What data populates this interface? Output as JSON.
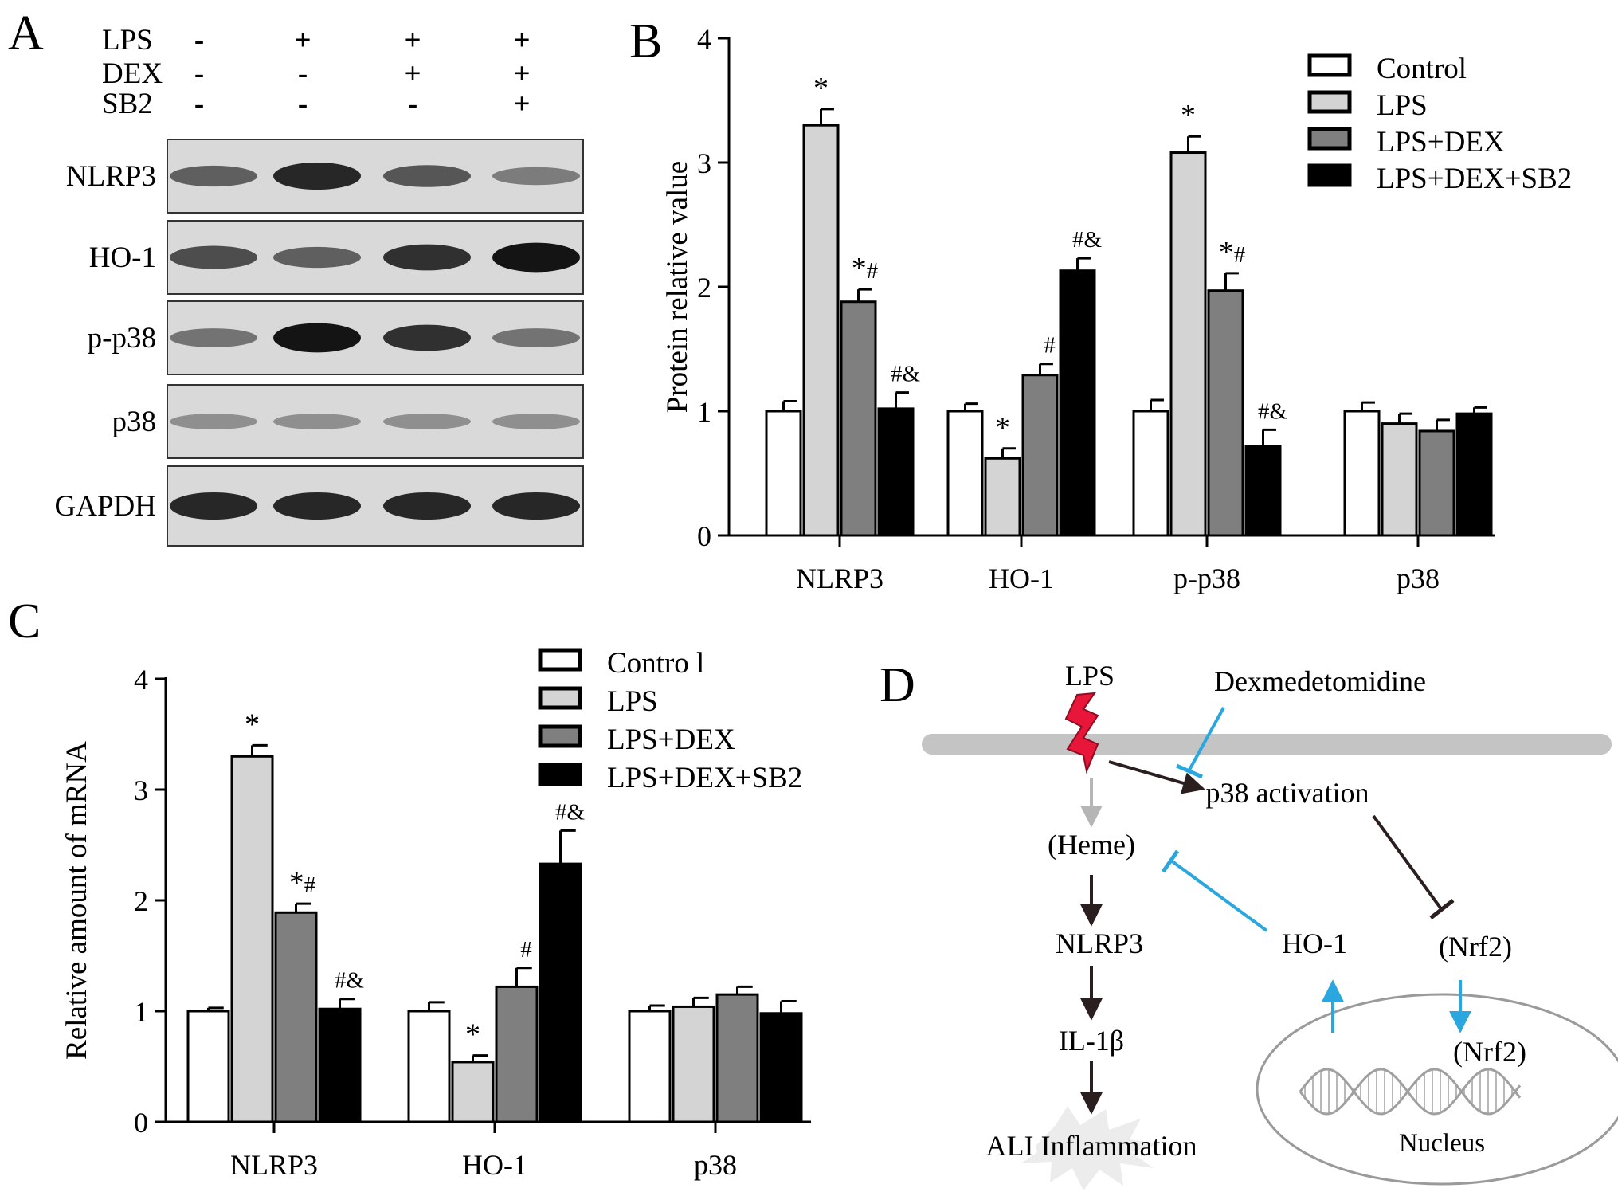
{
  "panels": {
    "A": "A",
    "B": "B",
    "C": "C",
    "D": "D"
  },
  "colors": {
    "control": "#ffffff",
    "lps": "#d4d4d4",
    "lps_dex": "#7f7f7f",
    "lps_dex_sb2": "#000000",
    "inhibit_blue": "#29a7de",
    "lightning": "#e8173a"
  },
  "blot": {
    "conditions": [
      {
        "name": "LPS",
        "signs": [
          "-",
          "+",
          "+",
          "+"
        ]
      },
      {
        "name": "DEX",
        "signs": [
          "-",
          "-",
          "+",
          "+"
        ]
      },
      {
        "name": "SB2",
        "signs": [
          "-",
          "-",
          "-",
          "+"
        ]
      }
    ],
    "bands": [
      {
        "label": "NLRP3",
        "intensity": [
          0.55,
          0.85,
          0.6,
          0.4
        ]
      },
      {
        "label": "HO-1",
        "intensity": [
          0.65,
          0.55,
          0.8,
          0.95
        ]
      },
      {
        "label": "p-p38",
        "intensity": [
          0.45,
          0.95,
          0.8,
          0.45
        ]
      },
      {
        "label": "p38",
        "intensity": [
          0.3,
          0.3,
          0.3,
          0.3
        ]
      },
      {
        "label": "GAPDH",
        "intensity": [
          0.85,
          0.85,
          0.85,
          0.85
        ]
      }
    ]
  },
  "chart_data": [
    {
      "type": "bar",
      "panel": "B",
      "ylabel": "Protein relative value",
      "ylim": [
        0,
        4
      ],
      "yticks": [
        "0",
        "1",
        "2",
        "3",
        "4"
      ],
      "categories": [
        "NLRP3",
        "HO-1",
        "p-p38",
        "p38"
      ],
      "legend": {
        "placement": "top-right",
        "entries": [
          "Control",
          "LPS",
          "LPS+DEX",
          "LPS+DEX+SB2"
        ]
      },
      "series": [
        {
          "name": "Control",
          "values": [
            1.0,
            1.0,
            1.0,
            1.0
          ],
          "errors": [
            0.08,
            0.06,
            0.09,
            0.07
          ],
          "labels": [
            "",
            "",
            "",
            ""
          ]
        },
        {
          "name": "LPS",
          "values": [
            3.3,
            0.62,
            3.08,
            0.9
          ],
          "errors": [
            0.13,
            0.08,
            0.13,
            0.08
          ],
          "labels": [
            "*",
            "*",
            "*",
            ""
          ]
        },
        {
          "name": "LPS+DEX",
          "values": [
            1.88,
            1.29,
            1.97,
            0.84
          ],
          "errors": [
            0.1,
            0.09,
            0.14,
            0.09
          ],
          "labels": [
            "*#",
            "#",
            "*#",
            ""
          ]
        },
        {
          "name": "LPS+DEX+SB2",
          "values": [
            1.02,
            2.13,
            0.72,
            0.98
          ],
          "errors": [
            0.13,
            0.1,
            0.13,
            0.05
          ],
          "labels": [
            "#&",
            "#&",
            "#&",
            ""
          ]
        }
      ]
    },
    {
      "type": "bar",
      "panel": "C",
      "ylabel": "Relative amount of mRNA",
      "ylim": [
        0,
        4
      ],
      "yticks": [
        "0",
        "1",
        "2",
        "3",
        "4"
      ],
      "categories": [
        "NLRP3",
        "HO-1",
        "p38"
      ],
      "legend": {
        "placement": "top-right",
        "entries": [
          "Contro l",
          "LPS",
          "LPS+DEX",
          "LPS+DEX+SB2"
        ]
      },
      "series": [
        {
          "name": "Contro l",
          "values": [
            1.0,
            1.0,
            1.0
          ],
          "errors": [
            0.03,
            0.08,
            0.05
          ],
          "labels": [
            "",
            "",
            ""
          ]
        },
        {
          "name": "LPS",
          "values": [
            3.3,
            0.54,
            1.04
          ],
          "errors": [
            0.1,
            0.06,
            0.08
          ],
          "labels": [
            "*",
            "*",
            ""
          ]
        },
        {
          "name": "LPS+DEX",
          "values": [
            1.89,
            1.22,
            1.15
          ],
          "errors": [
            0.08,
            0.17,
            0.07
          ],
          "labels": [
            "*#",
            "#",
            ""
          ]
        },
        {
          "name": "LPS+DEX+SB2",
          "values": [
            1.02,
            2.33,
            0.98
          ],
          "errors": [
            0.09,
            0.3,
            0.11
          ],
          "labels": [
            "#&",
            "#&",
            ""
          ]
        }
      ]
    }
  ],
  "diagram": {
    "lps": "LPS",
    "dexmedetomidine": "Dexmedetomidine",
    "p38_activation": "p38 activation",
    "heme": "(Heme)",
    "nlrp3": "NLRP3",
    "ho1": "HO-1",
    "nrf2_cyto": "(Nrf2)",
    "il1b": "IL-1β",
    "nrf2_nuc": "(Nrf2)",
    "nucleus": "Nucleus",
    "ali": "ALI Inflammation"
  }
}
